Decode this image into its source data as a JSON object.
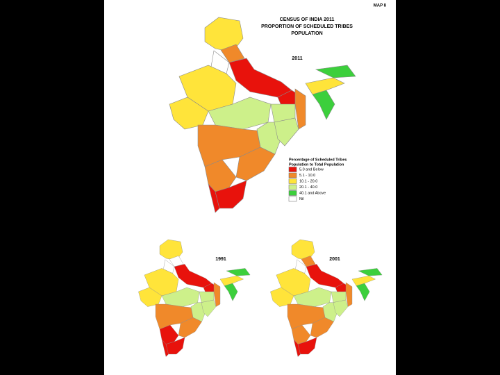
{
  "header": {
    "map_number": "MAP 8",
    "title": [
      "CENSUS OF INDIA 2011",
      "PROPORTION OF SCHEDULED TRIBES",
      "POPULATION"
    ]
  },
  "maps": [
    {
      "year": "2011"
    },
    {
      "year": "1991"
    },
    {
      "year": "2001"
    }
  ],
  "legend": {
    "title": [
      "Percentage of Scheduled Tribes",
      "Population to Total Population"
    ],
    "items": [
      {
        "label": "5.0 and Below",
        "color": "#e8120c"
      },
      {
        "label": "5.1 - 10.0",
        "color": "#f0892a"
      },
      {
        "label": "10.1 - 20.0",
        "color": "#ffe43a"
      },
      {
        "label": "20.1 - 40.0",
        "color": "#cdf08a"
      },
      {
        "label": "40.1 and Above",
        "color": "#3ccf3c"
      },
      {
        "label": "Nil",
        "color": "#ffffff"
      }
    ]
  }
}
